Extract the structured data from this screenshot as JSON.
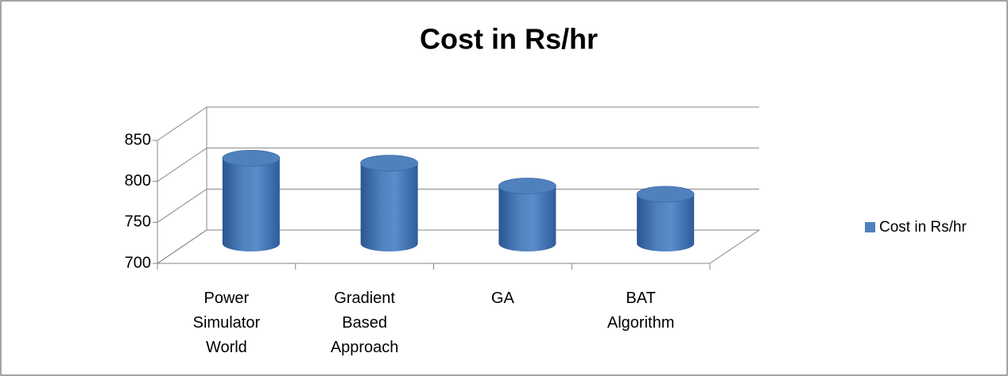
{
  "chart_data": {
    "type": "bar",
    "title": "Cost in Rs/hr",
    "categories": [
      "Power Simulator World",
      "Gradient Based Approach",
      "GA",
      "BAT Algorithm"
    ],
    "series": [
      {
        "name": "Cost in Rs/hr",
        "color": "#4f81bd",
        "values": [
          808,
          802,
          774,
          764
        ]
      }
    ],
    "ylim": [
      700,
      850
    ],
    "yticks": [
      700,
      750,
      800,
      850
    ],
    "grid": true,
    "legend": "right"
  }
}
